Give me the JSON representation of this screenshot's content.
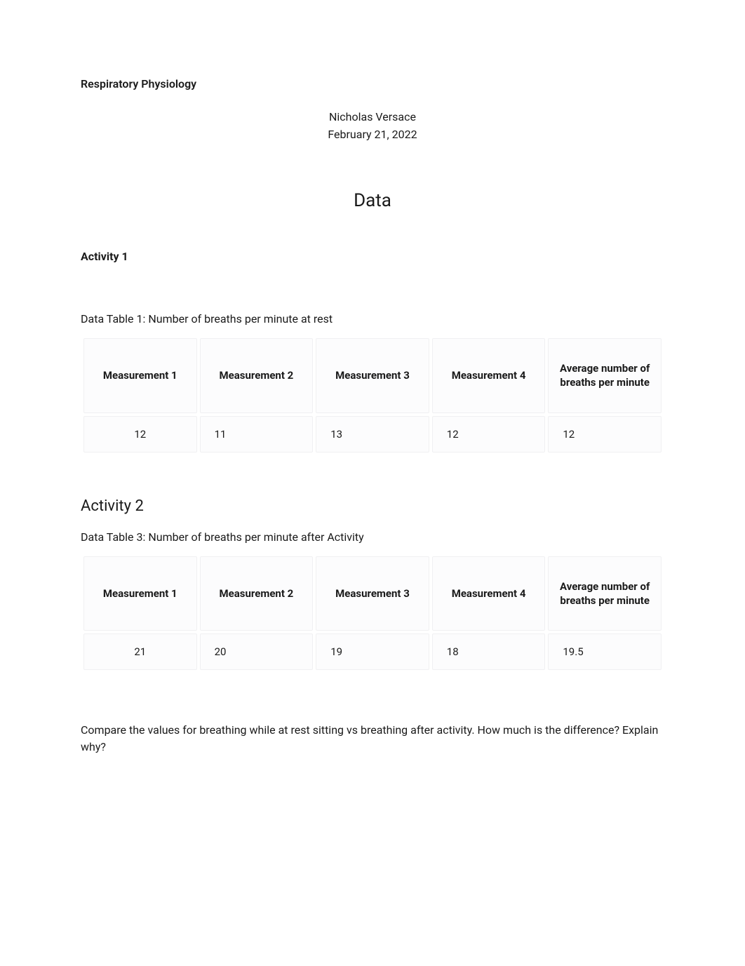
{
  "header": {
    "title": "Respiratory Physiology",
    "author": "Nicholas Versace",
    "date": "February 21, 2022"
  },
  "section_heading": "Data",
  "activity1": {
    "label": "Activity 1",
    "table_caption": "Data Table 1: Number of breaths per minute at rest",
    "columns": [
      "Measurement 1",
      "Measurement 2",
      "Measurement 3",
      "Measurement 4",
      "Average number of breaths per minute"
    ],
    "rows": [
      [
        "12",
        "11",
        "13",
        "12",
        "12"
      ]
    ]
  },
  "activity2": {
    "label": "Activity 2",
    "table_caption": "Data Table 3: Number of breaths per minute after Activity",
    "columns": [
      "Measurement 1",
      "Measurement 2",
      "Measurement 3",
      "Measurement 4",
      "Average number of breaths per minute"
    ],
    "rows": [
      [
        "21",
        "20",
        "19",
        "18",
        "19.5"
      ]
    ]
  },
  "question": "Compare the values for breathing while at rest sitting vs breathing after activity. How much is the difference? Explain why?",
  "styles": {
    "page_bg": "#ffffff",
    "text_color": "#1a1a1a",
    "cell_bg": "#fcfcfd",
    "cell_border": "#f0f0f2",
    "body_fontsize": 16,
    "heading_fontsize": 26,
    "activity2_fontsize": 22,
    "table_fontsize": 15
  }
}
